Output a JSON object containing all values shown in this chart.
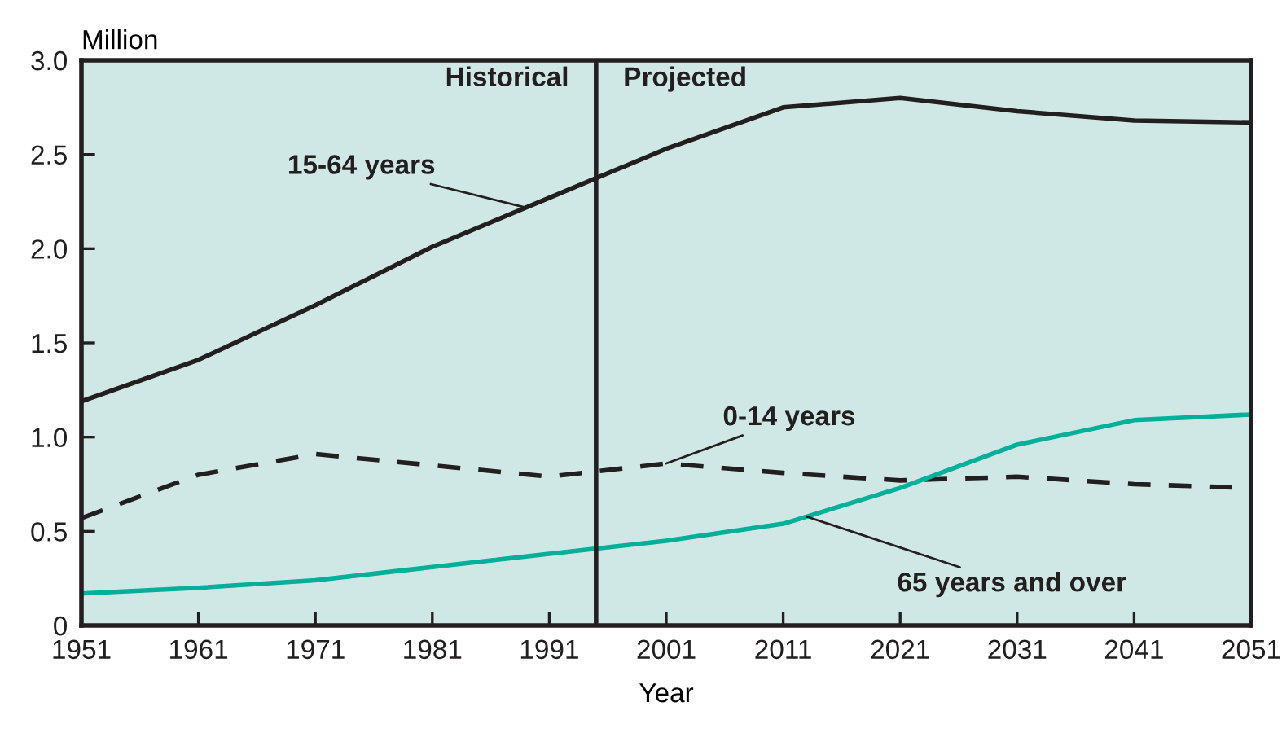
{
  "chart_data": {
    "type": "line",
    "ylabel": "Million",
    "xlabel": "Year",
    "x": [
      1951,
      1961,
      1971,
      1981,
      1991,
      2001,
      2011,
      2021,
      2031,
      2041,
      2051
    ],
    "series": [
      {
        "name": "15-64 years",
        "color": "#231f20",
        "line_style": "solid",
        "values": [
          1.19,
          1.41,
          1.7,
          2.01,
          2.27,
          2.53,
          2.75,
          2.8,
          2.73,
          2.68,
          2.67
        ]
      },
      {
        "name": "0-14 years",
        "color": "#231f20",
        "line_style": "dashed",
        "values": [
          0.57,
          0.8,
          0.91,
          0.85,
          0.79,
          0.86,
          0.81,
          0.77,
          0.79,
          0.75,
          0.73
        ]
      },
      {
        "name": "65 years and over",
        "color": "#00b09b",
        "line_style": "solid",
        "values": [
          0.17,
          0.2,
          0.24,
          0.31,
          0.38,
          0.45,
          0.54,
          0.73,
          0.96,
          1.09,
          1.12
        ]
      }
    ],
    "xlim": [
      1951,
      2051
    ],
    "xticks": [
      1951,
      1961,
      1971,
      1981,
      1991,
      2001,
      2011,
      2021,
      2031,
      2041,
      2051
    ],
    "ylim": [
      0,
      3.0
    ],
    "yticks": [
      {
        "value": 0,
        "label": "0"
      },
      {
        "value": 0.5,
        "label": "0.5"
      },
      {
        "value": 1.0,
        "label": "1.0"
      },
      {
        "value": 1.5,
        "label": "1.5"
      },
      {
        "value": 2.0,
        "label": "2.0"
      },
      {
        "value": 2.5,
        "label": "2.5"
      },
      {
        "value": 3.0,
        "label": "3.0"
      }
    ],
    "ref_lines": [
      {
        "axis": "x",
        "value": 1995,
        "color": "#231f20"
      }
    ],
    "annotations": [
      {
        "text": "Historical",
        "x": 1995,
        "y": 2.9
      },
      {
        "text": "Projected",
        "x": 1995,
        "y": 2.9
      }
    ],
    "grid": false,
    "legend": false,
    "marker": "none"
  }
}
